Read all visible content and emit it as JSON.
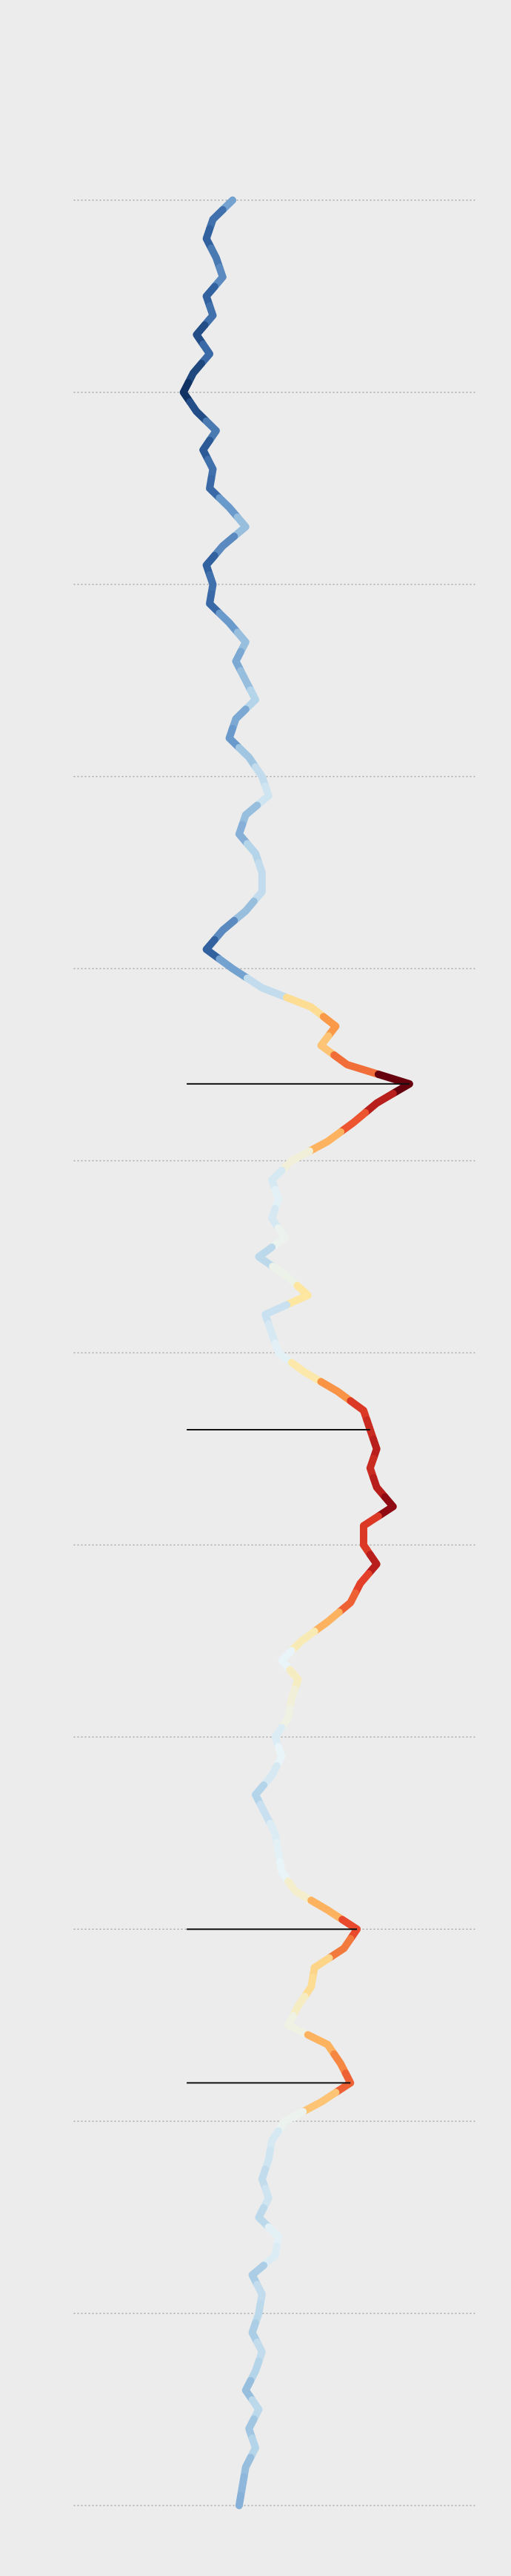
{
  "chart_data": {
    "type": "line",
    "orientation": "vertical",
    "values": [
      142,
      130,
      126,
      132,
      136,
      126,
      130,
      120,
      128,
      118,
      112,
      120,
      132,
      124,
      130,
      128,
      140,
      150,
      136,
      126,
      130,
      128,
      140,
      150,
      144,
      150,
      156,
      144,
      140,
      152,
      160,
      164,
      150,
      146,
      156,
      160,
      160,
      150,
      136,
      126,
      142,
      160,
      190,
      205,
      196,
      212,
      250,
      230,
      216,
      200,
      178,
      166,
      170,
      166,
      174,
      158,
      175,
      188,
      162,
      166,
      170,
      186,
      206,
      222,
      226,
      230,
      226,
      230,
      240,
      222,
      222,
      230,
      220,
      214,
      200,
      184,
      172,
      182,
      178,
      176,
      168,
      172,
      166,
      156,
      162,
      168,
      170,
      172,
      180,
      200,
      218,
      210,
      192,
      190,
      182,
      176,
      200,
      208,
      214,
      196,
      174,
      166,
      164,
      160,
      164,
      158,
      170,
      168,
      154,
      160,
      158,
      154,
      160,
      156,
      150,
      158,
      152,
      156,
      150,
      148,
      146
    ],
    "ylim": [
      45,
      290
    ],
    "xlim": [
      0,
      120
    ],
    "xticks": [
      0,
      10,
      20,
      30,
      40,
      50,
      60,
      70,
      80,
      90,
      100,
      110,
      120
    ],
    "grid": true,
    "color_scale": {
      "domain": [
        110,
        250
      ],
      "colors": [
        "#0b2d5b",
        "#2f5f9e",
        "#6f9fcf",
        "#b7d6ea",
        "#eaf4f8",
        "#fde7a0",
        "#fca44c",
        "#e8432a",
        "#a50f15",
        "#67000d"
      ]
    },
    "highlights": [
      46,
      64,
      90,
      98
    ]
  }
}
